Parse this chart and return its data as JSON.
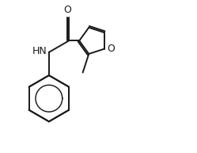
{
  "bg_color": "#ffffff",
  "line_color": "#1a1a1a",
  "bond_width": 1.4,
  "font_size": 9,
  "figsize": [
    2.49,
    1.93
  ],
  "dpi": 100,
  "xlim": [
    0.0,
    8.5
  ],
  "ylim": [
    0.5,
    7.0
  ]
}
